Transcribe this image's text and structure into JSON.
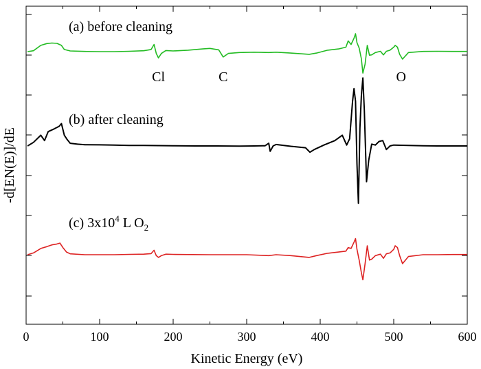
{
  "chart_data": {
    "type": "line",
    "xlabel": "Kinetic Energy (eV)",
    "ylabel": "-d[EN(E)]/dE",
    "xlim": [
      0,
      600
    ],
    "x_ticks": [
      0,
      100,
      200,
      300,
      400,
      500,
      600
    ],
    "x_tick_labels": [
      "0",
      "100",
      "200",
      "300",
      "400",
      "500",
      "600"
    ],
    "y_ticks_labeled": false,
    "grid": false,
    "series": [
      {
        "name": "(a) before cleaning",
        "color": "#22bb22",
        "x": [
          2,
          10,
          20,
          28,
          35,
          42,
          48,
          52,
          60,
          80,
          100,
          120,
          140,
          160,
          170,
          174,
          177,
          180,
          184,
          190,
          200,
          220,
          240,
          250,
          262,
          268,
          275,
          290,
          310,
          330,
          340,
          360,
          385,
          395,
          410,
          425,
          435,
          438,
          442,
          446,
          448,
          450,
          453,
          456,
          458,
          461,
          464,
          467,
          470,
          475,
          482,
          486,
          490,
          495,
          500,
          502,
          505,
          508,
          512,
          520,
          540,
          560,
          580,
          600
        ],
        "y": [
          0.0,
          0.5,
          3.5,
          4.5,
          4.8,
          4.6,
          3.5,
          1.2,
          0.4,
          0.1,
          0.0,
          0.0,
          0.2,
          0.5,
          1.2,
          4.0,
          -1.0,
          -3.5,
          -1.0,
          0.6,
          0.4,
          0.8,
          1.5,
          1.8,
          1.0,
          -3.0,
          -1.0,
          -0.5,
          -0.3,
          -0.5,
          -0.3,
          -0.8,
          -1.5,
          -0.8,
          0.8,
          1.5,
          2.5,
          6.0,
          4.0,
          7.5,
          10.0,
          5.0,
          2.0,
          -4.0,
          -12.0,
          -7.0,
          3.5,
          -2.0,
          -1.8,
          -0.5,
          0.2,
          -1.8,
          0.2,
          0.8,
          2.5,
          3.5,
          2.5,
          -1.5,
          -4.2,
          -0.5,
          0.1,
          0.2,
          0.1,
          0.1
        ],
        "annotations": [
          {
            "text": "Cl",
            "x": 180
          },
          {
            "text": "C",
            "x": 268
          },
          {
            "text": "O",
            "x": 510
          }
        ]
      },
      {
        "name": "(b) after cleaning",
        "color": "#000000",
        "x": [
          2,
          10,
          20,
          25,
          30,
          38,
          45,
          48,
          52,
          56,
          60,
          70,
          80,
          100,
          120,
          140,
          160,
          180,
          200,
          230,
          260,
          290,
          310,
          325,
          330,
          332,
          336,
          340,
          360,
          380,
          386,
          392,
          405,
          420,
          430,
          436,
          440,
          444,
          446,
          448,
          450,
          452,
          454,
          456,
          458,
          460,
          463,
          466,
          470,
          475,
          480,
          485,
          490,
          495,
          500,
          520,
          540,
          560,
          580,
          600
        ],
        "y": [
          0.0,
          2.0,
          6.0,
          3.0,
          8.0,
          9.5,
          11.0,
          12.5,
          6.0,
          3.5,
          1.5,
          1.0,
          0.7,
          0.6,
          0.5,
          0.3,
          0.3,
          0.2,
          0.1,
          0.0,
          0.0,
          -0.1,
          0.0,
          0.1,
          1.5,
          -3.0,
          0.0,
          0.8,
          -0.2,
          -1.0,
          -3.5,
          -2.0,
          0.5,
          3.0,
          6.0,
          0.5,
          4.0,
          25.0,
          32.0,
          25.0,
          -10.0,
          -32.0,
          10.0,
          28.0,
          38.0,
          20.0,
          -20.0,
          -8.0,
          1.0,
          0.5,
          2.5,
          3.0,
          -2.0,
          0.0,
          0.5,
          0.3,
          0.1,
          0.0,
          0.0,
          0.0
        ]
      },
      {
        "name": "(c) 3x10",
        "name_sup": "4",
        "name_suffix": " L O",
        "name_sub": "2",
        "color": "#dd2222",
        "x": [
          2,
          10,
          20,
          28,
          35,
          42,
          46,
          50,
          55,
          60,
          80,
          100,
          120,
          140,
          160,
          170,
          174,
          177,
          180,
          184,
          190,
          200,
          250,
          300,
          330,
          340,
          360,
          385,
          395,
          410,
          425,
          435,
          438,
          442,
          446,
          448,
          450,
          453,
          456,
          458,
          461,
          464,
          467,
          470,
          475,
          482,
          486,
          490,
          495,
          500,
          502,
          505,
          508,
          512,
          520,
          540,
          560,
          580,
          600
        ],
        "y": [
          0.0,
          1.0,
          3.5,
          4.5,
          5.5,
          6.0,
          6.5,
          4.0,
          1.5,
          0.5,
          0.0,
          0.0,
          0.0,
          0.2,
          0.3,
          0.6,
          2.5,
          -0.5,
          -1.5,
          -0.5,
          0.3,
          0.2,
          0.0,
          0.0,
          -0.5,
          0.0,
          -0.5,
          -1.5,
          -0.5,
          0.8,
          1.5,
          2.0,
          4.0,
          3.5,
          7.0,
          9.0,
          3.0,
          -3.0,
          -10.0,
          -14.0,
          -5.0,
          5.0,
          -3.0,
          -2.5,
          -0.5,
          0.3,
          -2.0,
          0.5,
          1.0,
          3.0,
          5.0,
          4.0,
          -0.5,
          -5.0,
          -1.0,
          0.0,
          0.0,
          0.1,
          0.1
        ]
      }
    ]
  }
}
